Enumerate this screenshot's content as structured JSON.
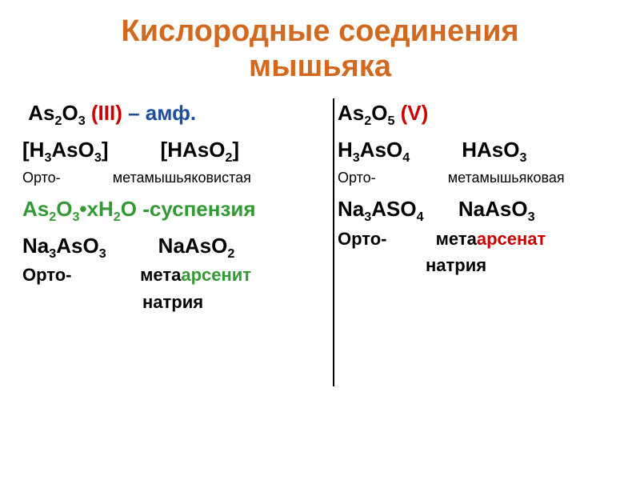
{
  "colors": {
    "title": "#d2691e",
    "black": "#000000",
    "red": "#cc0000",
    "green": "#339933",
    "blue": "#1e4d9e",
    "background": "#ffffff"
  },
  "title_line1": "Кислородные соединения",
  "title_line2": "мышьяка",
  "left": {
    "l1_a": "As",
    "l1_b": "O",
    "l1_c": " (III)",
    "l1_d": " – амф.",
    "l2_a": "[H",
    "l2_b": "AsO",
    "l2_c": "]",
    "l2_d": "[HAsO",
    "l2_e": "]",
    "l3_a": "Орто-",
    "l3_b": "метамышьяковистая",
    "l4_a": "As",
    "l4_b": "O",
    "l4_c": "xH",
    "l4_d": "O -суспензия",
    "l5_a": "Na",
    "l5_b": "AsO",
    "l5_c": "NaAsO",
    "l6_a": "Орто-",
    "l6_b": "мета",
    "l6_c": "арсенит",
    "l7": "натрия",
    "dot": "•"
  },
  "right": {
    "r1_a": "As",
    "r1_b": "O",
    "r1_c": "  (V)",
    "r2_a": "H",
    "r2_b": "AsO",
    "r2_c": "HAsO",
    "r3_a": "Орто-",
    "r3_b": "метамышьяковая",
    "r4_a": "Na",
    "r4_b": "ASO",
    "r4_c": "NaAsO",
    "r5_a": "Орто-",
    "r5_b": "мета",
    "r5_c": "арсенат",
    "r6": "натрия"
  },
  "sub": {
    "s2": "2",
    "s3": "3",
    "s4": "4",
    "s5": "5"
  }
}
